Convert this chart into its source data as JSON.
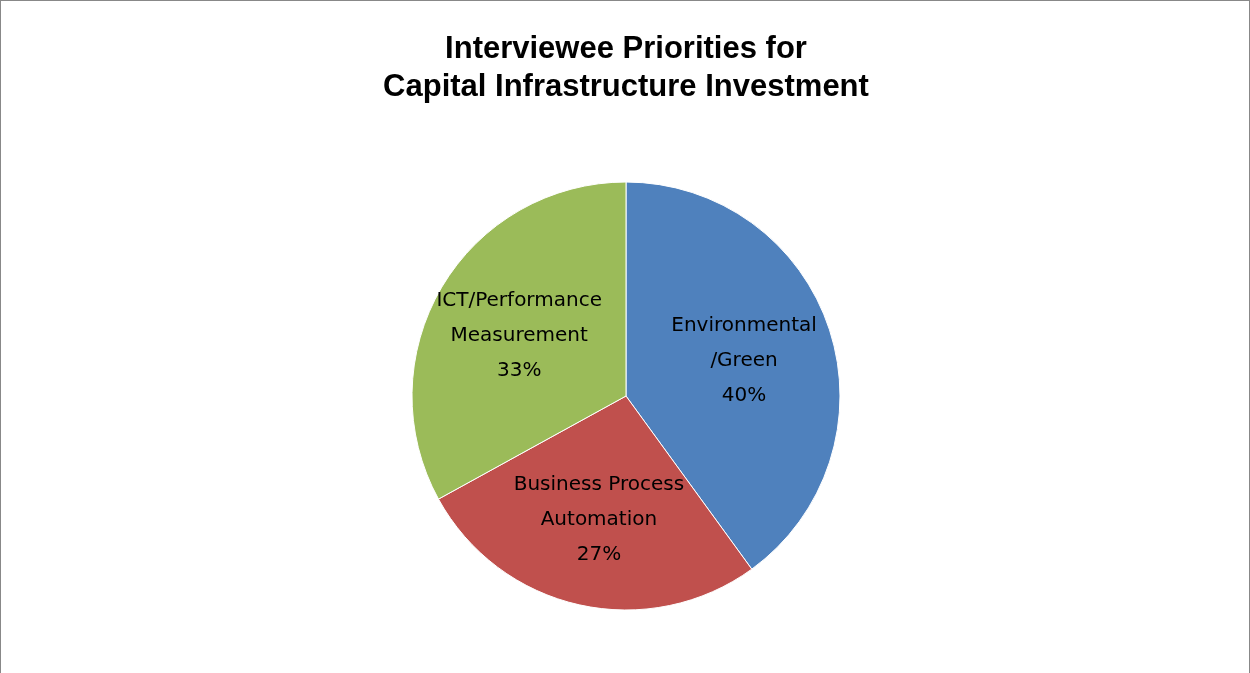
{
  "chart_data": {
    "type": "pie",
    "title": "Interviewee Priorities for\nCapital Infrastructure Investment",
    "categories": [
      "Environmental\n/Green",
      "Business Process\nAutomation",
      "ICT/Performance\nMeasurement"
    ],
    "values": [
      40,
      27,
      33
    ],
    "value_labels": [
      "40%",
      "27%",
      "33%"
    ],
    "colors": [
      "#4f81bd",
      "#c0504d",
      "#9bbb59"
    ]
  }
}
